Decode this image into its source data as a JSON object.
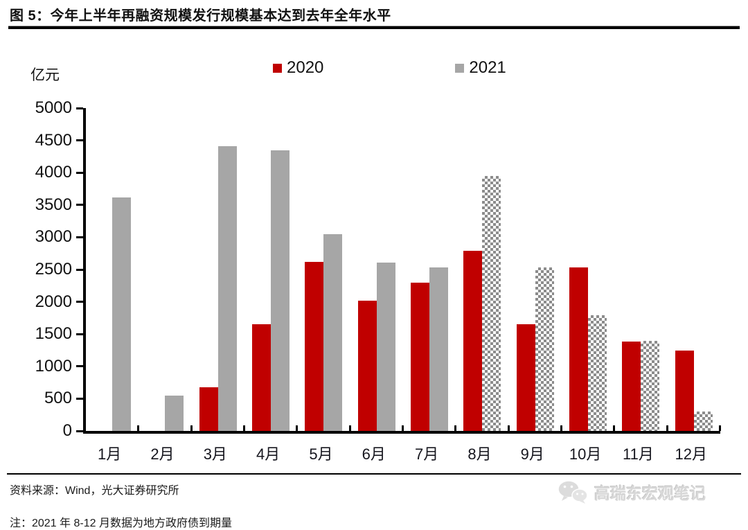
{
  "figure": {
    "title": "图 5：今年上半年再融资规模发行规模基本达到去年全年水平",
    "unit_label": "亿元",
    "source": "资料来源：Wind，光大证券研究所",
    "note": "注：2021 年 8-12 月数据为地方政府债到期量",
    "watermark_text": "高瑞东宏观笔记",
    "watermark_icon": "wechat-icon"
  },
  "colors": {
    "series_2020_red": "#c00000",
    "series_2021_gray": "#a6a6a6",
    "hatch_gray": "#8c8c8c",
    "axis_black": "#000000",
    "watermark_gray": "#d8d8d8"
  },
  "chart_data": {
    "type": "bar",
    "title": "图 5：今年上半年再融资规模发行规模基本达到去年全年水平",
    "xlabel": "",
    "ylabel": "亿元",
    "ylim": [
      0,
      5000
    ],
    "yticks": [
      5000,
      4500,
      4000,
      3500,
      3000,
      2500,
      2000,
      1500,
      1000,
      500,
      0
    ],
    "grid": false,
    "legend_position": "top",
    "categories": [
      "1月",
      "2月",
      "3月",
      "4月",
      "5月",
      "6月",
      "7月",
      "8月",
      "9月",
      "10月",
      "11月",
      "12月"
    ],
    "series": [
      {
        "name": "2020",
        "color": "#c00000",
        "values": [
          0,
          0,
          680,
          1650,
          2620,
          2020,
          2300,
          2790,
          1650,
          2530,
          1380,
          1250
        ]
      },
      {
        "name": "2021",
        "color": "#a6a6a6",
        "values": [
          3620,
          550,
          4410,
          4350,
          3050,
          2610,
          2530,
          3950,
          2530,
          1790,
          1400,
          300
        ],
        "hatched_indices": [
          7,
          8,
          9,
          10,
          11
        ],
        "hatched_meaning": "2021年8-12月数据为地方政府债到期量"
      }
    ]
  }
}
